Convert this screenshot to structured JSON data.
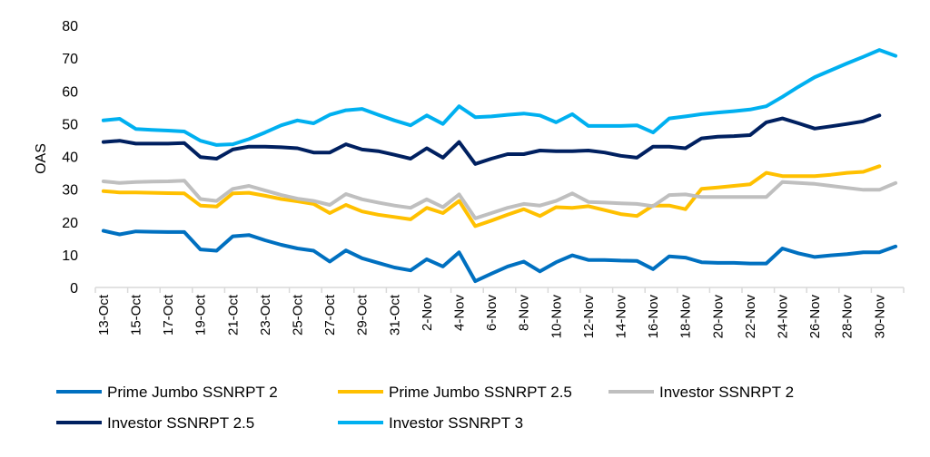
{
  "chart_data": {
    "type": "line",
    "title": "",
    "xlabel": "",
    "ylabel": "OAS",
    "ylim": [
      0,
      80
    ],
    "yticks": [
      0,
      10,
      20,
      30,
      40,
      50,
      60,
      70,
      80
    ],
    "grid": false,
    "legend_position": "bottom",
    "categories": [
      "13-Oct",
      "14-Oct",
      "15-Oct",
      "16-Oct",
      "17-Oct",
      "18-Oct",
      "19-Oct",
      "20-Oct",
      "21-Oct",
      "22-Oct",
      "23-Oct",
      "24-Oct",
      "25-Oct",
      "26-Oct",
      "27-Oct",
      "28-Oct",
      "29-Oct",
      "30-Oct",
      "31-Oct",
      "1-Nov",
      "2-Nov",
      "3-Nov",
      "4-Nov",
      "5-Nov",
      "6-Nov",
      "7-Nov",
      "8-Nov",
      "9-Nov",
      "10-Nov",
      "11-Nov",
      "12-Nov",
      "13-Nov",
      "14-Nov",
      "15-Nov",
      "16-Nov",
      "17-Nov",
      "18-Nov",
      "19-Nov",
      "20-Nov",
      "21-Nov",
      "22-Nov",
      "23-Nov",
      "24-Nov",
      "25-Nov",
      "26-Nov",
      "27-Nov",
      "28-Nov",
      "29-Nov",
      "30-Nov",
      "1-Dec"
    ],
    "series": [
      {
        "name": "Prime Jumbo SSNRPT 2",
        "color": "#0070C0",
        "values": [
          17.3,
          16.2,
          17.1,
          17.0,
          16.9,
          16.9,
          11.6,
          11.2,
          15.6,
          16.0,
          14.4,
          13.0,
          11.9,
          11.2,
          7.9,
          11.3,
          8.9,
          7.5,
          6.1,
          5.2,
          8.6,
          6.4,
          10.7,
          1.9,
          4.2,
          6.4,
          7.9,
          4.9,
          7.7,
          9.8,
          8.4,
          8.4,
          8.2,
          8.1,
          5.6,
          9.5,
          9.1,
          7.7,
          7.5,
          7.5,
          7.3,
          7.3,
          11.9,
          10.4,
          9.3,
          9.8,
          10.2,
          10.7,
          10.7,
          12.5
        ]
      },
      {
        "name": "Prime Jumbo SSNRPT 2.5",
        "color": "#FFC000",
        "values": [
          29.4,
          29.0,
          29.0,
          28.9,
          28.8,
          28.7,
          25.0,
          24.7,
          28.7,
          28.9,
          28.0,
          27.0,
          26.3,
          25.5,
          22.7,
          25.2,
          23.2,
          22.2,
          21.5,
          20.8,
          24.3,
          22.7,
          26.4,
          18.7,
          20.4,
          22.2,
          23.9,
          21.8,
          24.5,
          24.3,
          24.8,
          23.6,
          22.4,
          21.8,
          25.0,
          25.0,
          23.9,
          30.1,
          30.5,
          31.0,
          31.5,
          35.0,
          34.0,
          34.0,
          34.0,
          34.4,
          35.0,
          35.3,
          37.0,
          null
        ]
      },
      {
        "name": "Investor SSNRPT 2",
        "color": "#BFBFBF",
        "values": [
          32.4,
          31.9,
          32.2,
          32.3,
          32.4,
          32.6,
          27.0,
          26.4,
          30.1,
          31.0,
          29.6,
          28.2,
          27.1,
          26.4,
          25.2,
          28.5,
          26.9,
          25.9,
          25.0,
          24.3,
          26.9,
          24.5,
          28.4,
          21.1,
          22.7,
          24.3,
          25.5,
          25.0,
          26.4,
          28.7,
          26.1,
          25.9,
          25.7,
          25.5,
          24.8,
          28.2,
          28.4,
          27.6,
          27.6,
          27.6,
          27.6,
          27.6,
          32.2,
          31.9,
          31.6,
          31.0,
          30.4,
          29.8,
          29.8,
          31.9
        ]
      },
      {
        "name": "Investor SSNRPT 2.5",
        "color": "#002060",
        "values": [
          44.4,
          44.8,
          43.9,
          43.9,
          43.9,
          44.1,
          39.8,
          39.3,
          42.1,
          43.0,
          43.0,
          42.8,
          42.5,
          41.2,
          41.2,
          43.7,
          42.1,
          41.6,
          40.5,
          39.3,
          42.5,
          39.6,
          44.4,
          37.7,
          39.3,
          40.7,
          40.7,
          41.8,
          41.6,
          41.6,
          41.8,
          41.2,
          40.2,
          39.6,
          43.0,
          43.0,
          42.5,
          45.5,
          46.0,
          46.2,
          46.5,
          50.4,
          51.6,
          50.1,
          48.5,
          49.2,
          49.9,
          50.7,
          52.5,
          null
        ]
      },
      {
        "name": "Investor SSNRPT 3",
        "color": "#00B0F0",
        "values": [
          51.0,
          51.5,
          48.4,
          48.1,
          47.9,
          47.6,
          44.8,
          43.5,
          43.7,
          45.3,
          47.3,
          49.5,
          51.0,
          50.1,
          52.7,
          54.1,
          54.5,
          52.7,
          51.0,
          49.5,
          52.5,
          49.9,
          55.3,
          52.0,
          52.2,
          52.7,
          53.1,
          52.5,
          50.4,
          52.9,
          49.3,
          49.3,
          49.3,
          49.5,
          47.3,
          51.6,
          52.2,
          52.9,
          53.4,
          53.8,
          54.3,
          55.3,
          58.2,
          61.3,
          64.2,
          66.3,
          68.4,
          70.4,
          72.5,
          70.7
        ]
      }
    ]
  }
}
